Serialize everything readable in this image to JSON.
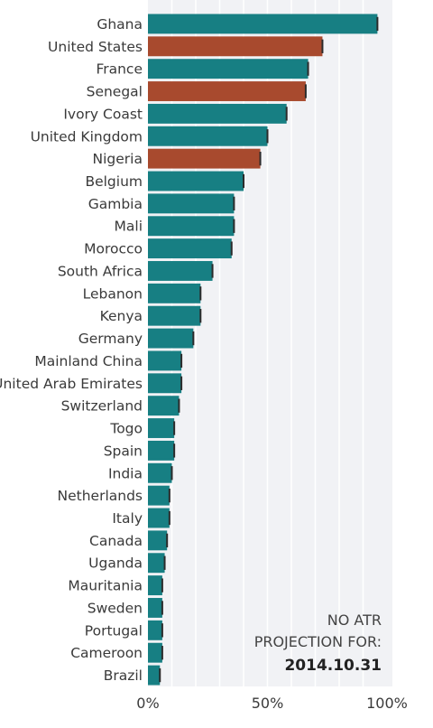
{
  "chart_data": {
    "type": "bar",
    "orientation": "horizontal",
    "categories": [
      "Ghana",
      "United States",
      "France",
      "Senegal",
      "Ivory Coast",
      "United Kingdom",
      "Nigeria",
      "Belgium",
      "Gambia",
      "Mali",
      "Morocco",
      "South Africa",
      "Lebanon",
      "Kenya",
      "Germany",
      "Mainland China",
      "United Arab Emirates",
      "Switzerland",
      "Togo",
      "Spain",
      "India",
      "Netherlands",
      "Italy",
      "Canada",
      "Uganda",
      "Mauritania",
      "Sweden",
      "Portugal",
      "Cameroon",
      "Brazil"
    ],
    "values": [
      96,
      73,
      67,
      66,
      58,
      50,
      47,
      40,
      36,
      36,
      35,
      27,
      22,
      22,
      19,
      14,
      14,
      13,
      11,
      11,
      10,
      9,
      9,
      8,
      7,
      6,
      6,
      6,
      6,
      5
    ],
    "highlight": [
      "United States",
      "Senegal",
      "Nigeria"
    ],
    "colors": {
      "default": "#177f83",
      "highlight": "#a84a2e",
      "plot_bg": "#f1f2f5",
      "grid": "#ffffff"
    },
    "xlim": [
      0,
      100
    ],
    "x_ticks": [
      0,
      50,
      100
    ],
    "x_tick_labels": [
      "0%",
      "50%",
      "100%"
    ],
    "grid": true,
    "annotation": {
      "line1": "NO ATR",
      "line2": "PROJECTION FOR:",
      "date": "2014.10.31"
    }
  }
}
